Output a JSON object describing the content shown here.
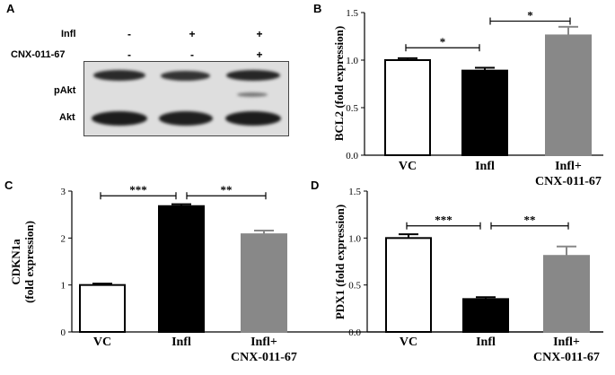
{
  "panels": {
    "a": {
      "letter": "A",
      "rows": [
        {
          "label": "Infl",
          "values": [
            "-",
            "+",
            "+"
          ]
        },
        {
          "label": "CNX-011-67",
          "values": [
            "-",
            "-",
            "+"
          ]
        }
      ],
      "band_labels": [
        "pAkt",
        "Akt"
      ]
    },
    "b": {
      "letter": "B"
    },
    "c": {
      "letter": "C"
    },
    "d": {
      "letter": "D"
    }
  },
  "colors": {
    "vc": "#ffffff",
    "infl": "#000000",
    "cnx": "#888888",
    "axis": "#000000"
  },
  "chart_data": [
    {
      "id": "B",
      "type": "bar",
      "categories": [
        "VC",
        "Infl",
        "Infl+\nCNX-011-67"
      ],
      "values": [
        1.0,
        0.89,
        1.26
      ],
      "errors": [
        0.02,
        0.03,
        0.09
      ],
      "ylabel": "BCL2 (fold expression)",
      "ylim": [
        0,
        1.5
      ],
      "yticks": [
        "0.0",
        "0.5",
        "1.0",
        "1.5"
      ],
      "yticks_values": [
        0,
        0.5,
        1.0,
        1.5
      ],
      "brackets": [
        {
          "from": 0,
          "to": 1,
          "y": 1.13,
          "label": "*"
        },
        {
          "from": 1,
          "to": 2,
          "y": 1.41,
          "label": "*"
        }
      ]
    },
    {
      "id": "C",
      "type": "bar",
      "categories": [
        "VC",
        "Infl",
        "Infl+\nCNX-011-67"
      ],
      "values": [
        1.0,
        2.68,
        2.08
      ],
      "errors": [
        0.03,
        0.04,
        0.08
      ],
      "ylabel": "CDKN1a\n(fold expression)",
      "ylim": [
        0,
        3
      ],
      "yticks": [
        "0",
        "1",
        "2",
        "3"
      ],
      "yticks_values": [
        0,
        1,
        2,
        3
      ],
      "brackets": [
        {
          "from": 0,
          "to": 1,
          "y": 2.9,
          "label": "***"
        },
        {
          "from": 1,
          "to": 2,
          "y": 2.9,
          "label": "**"
        }
      ]
    },
    {
      "id": "D",
      "type": "bar",
      "categories": [
        "VC",
        "Infl",
        "Infl+\nCNX-011-67"
      ],
      "values": [
        1.0,
        0.35,
        0.81
      ],
      "errors": [
        0.04,
        0.02,
        0.1
      ],
      "ylabel": "PDX1 (fold expression)",
      "ylim": [
        0,
        1.5
      ],
      "yticks": [
        "0.0",
        "0.5",
        "1.0",
        "1.5"
      ],
      "yticks_values": [
        0,
        0.5,
        1.0,
        1.5
      ],
      "brackets": [
        {
          "from": 0,
          "to": 1,
          "y": 1.13,
          "label": "***"
        },
        {
          "from": 1,
          "to": 2,
          "y": 1.13,
          "label": "**"
        }
      ]
    }
  ]
}
